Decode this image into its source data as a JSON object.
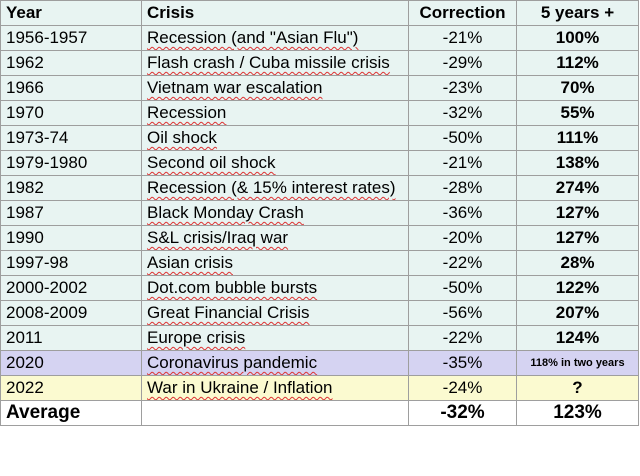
{
  "headers": {
    "year": "Year",
    "crisis": "Crisis",
    "correction": "Correction",
    "five_years": "5 years +"
  },
  "rows": [
    {
      "year": "1956-1957",
      "crisis": "Recession (and \"Asian Flu\")",
      "correction": "-21%",
      "five_years": "100%"
    },
    {
      "year": "1962",
      "crisis": "Flash crash / Cuba missile crisis",
      "correction": "-29%",
      "five_years": "112%"
    },
    {
      "year": "1966",
      "crisis": "Vietnam war escalation",
      "correction": "-23%",
      "five_years": "70%"
    },
    {
      "year": "1970",
      "crisis": "Recession",
      "correction": "-32%",
      "five_years": "55%"
    },
    {
      "year": "1973-74",
      "crisis": "Oil shock",
      "correction": "-50%",
      "five_years": "111%"
    },
    {
      "year": "1979-1980",
      "crisis": "Second oil shock",
      "correction": "-21%",
      "five_years": "138%"
    },
    {
      "year": "1982",
      "crisis": "Recession (& 15% interest rates)",
      "correction": "-28%",
      "five_years": "274%"
    },
    {
      "year": "1987",
      "crisis": "Black Monday Crash",
      "correction": "-36%",
      "five_years": "127%"
    },
    {
      "year": "1990",
      "crisis": "S&L crisis/Iraq war",
      "correction": "-20%",
      "five_years": "127%"
    },
    {
      "year": "1997-98",
      "crisis": "Asian crisis",
      "correction": "-22%",
      "five_years": "28%"
    },
    {
      "year": "2000-2002",
      "crisis": "Dot.com bubble bursts",
      "correction": "-50%",
      "five_years": "122%"
    },
    {
      "year": "2008-2009",
      "crisis": "Great Financial Crisis",
      "correction": "-56%",
      "five_years": "207%"
    },
    {
      "year": "2011",
      "crisis": "Europe crisis",
      "correction": "-22%",
      "five_years": "124%"
    },
    {
      "year": "2020",
      "crisis": "Coronavirus pandemic",
      "correction": "-35%",
      "five_years": "118% in two years"
    },
    {
      "year": "2022",
      "crisis": "War in Ukraine / Inflation",
      "correction": "-24%",
      "five_years": "?"
    }
  ],
  "average": {
    "label": "Average",
    "correction": "-32%",
    "five_years": "123%"
  },
  "colors": {
    "row_default": "#e8f4f2",
    "row_2020": "#d5d3f2",
    "row_2022": "#fbfad0",
    "border": "#9e9e9e"
  }
}
